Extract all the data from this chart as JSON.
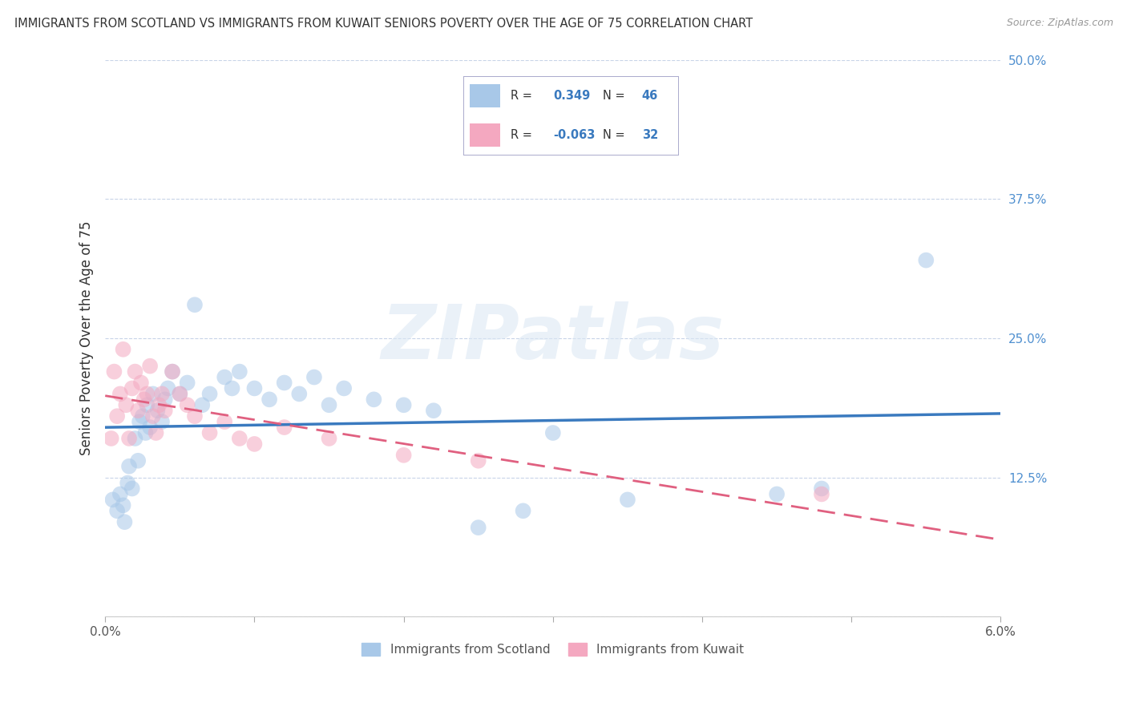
{
  "title": "IMMIGRANTS FROM SCOTLAND VS IMMIGRANTS FROM KUWAIT SENIORS POVERTY OVER THE AGE OF 75 CORRELATION CHART",
  "source": "Source: ZipAtlas.com",
  "ylabel": "Seniors Poverty Over the Age of 75",
  "xmin": 0.0,
  "xmax": 6.0,
  "ymin": 0.0,
  "ymax": 50.0,
  "yticks": [
    0.0,
    12.5,
    25.0,
    37.5,
    50.0
  ],
  "ytick_labels": [
    "",
    "12.5%",
    "25.0%",
    "37.5%",
    "50.0%"
  ],
  "scotland_R": 0.349,
  "scotland_N": 46,
  "kuwait_R": -0.063,
  "kuwait_N": 32,
  "scotland_color": "#a8c8e8",
  "kuwait_color": "#f4a8c0",
  "scotland_line_color": "#3a7abf",
  "kuwait_line_color": "#e06080",
  "background_color": "#ffffff",
  "grid_color": "#c8d4e8",
  "watermark_text": "ZIPatlas",
  "legend_label_scotland": "Immigrants from Scotland",
  "legend_label_kuwait": "Immigrants from Kuwait",
  "scotland_x": [
    0.05,
    0.08,
    0.1,
    0.12,
    0.13,
    0.15,
    0.16,
    0.18,
    0.2,
    0.22,
    0.23,
    0.25,
    0.27,
    0.28,
    0.3,
    0.32,
    0.35,
    0.38,
    0.4,
    0.42,
    0.45,
    0.5,
    0.55,
    0.6,
    0.65,
    0.7,
    0.8,
    0.85,
    0.9,
    1.0,
    1.1,
    1.2,
    1.3,
    1.4,
    1.5,
    1.6,
    1.8,
    2.0,
    2.2,
    2.5,
    2.8,
    3.0,
    3.5,
    4.5,
    4.8,
    5.5
  ],
  "scotland_y": [
    10.5,
    9.5,
    11.0,
    10.0,
    8.5,
    12.0,
    13.5,
    11.5,
    16.0,
    14.0,
    17.5,
    18.0,
    16.5,
    19.0,
    17.0,
    20.0,
    18.5,
    17.5,
    19.5,
    20.5,
    22.0,
    20.0,
    21.0,
    28.0,
    19.0,
    20.0,
    21.5,
    20.5,
    22.0,
    20.5,
    19.5,
    21.0,
    20.0,
    21.5,
    19.0,
    20.5,
    19.5,
    19.0,
    18.5,
    8.0,
    9.5,
    16.5,
    10.5,
    11.0,
    11.5,
    32.0
  ],
  "kuwait_x": [
    0.04,
    0.06,
    0.08,
    0.1,
    0.12,
    0.14,
    0.16,
    0.18,
    0.2,
    0.22,
    0.24,
    0.26,
    0.28,
    0.3,
    0.32,
    0.34,
    0.36,
    0.38,
    0.4,
    0.45,
    0.5,
    0.55,
    0.6,
    0.7,
    0.8,
    0.9,
    1.0,
    1.2,
    1.5,
    2.0,
    2.5,
    4.8
  ],
  "kuwait_y": [
    16.0,
    22.0,
    18.0,
    20.0,
    24.0,
    19.0,
    16.0,
    20.5,
    22.0,
    18.5,
    21.0,
    19.5,
    20.0,
    22.5,
    18.0,
    16.5,
    19.0,
    20.0,
    18.5,
    22.0,
    20.0,
    19.0,
    18.0,
    16.5,
    17.5,
    16.0,
    15.5,
    17.0,
    16.0,
    14.5,
    14.0,
    11.0
  ]
}
